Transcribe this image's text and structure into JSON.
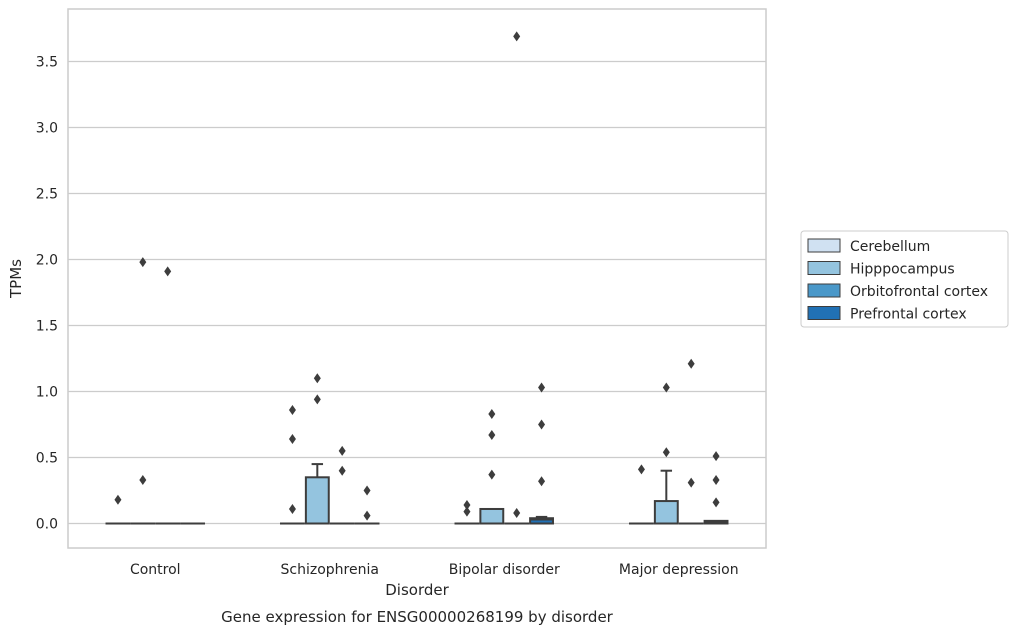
{
  "chart_data": {
    "type": "box",
    "caption": "Gene expression for ENSG00000268199 by disorder",
    "xlabel": "Disorder",
    "ylabel": "TPMs",
    "ylim": [
      -0.18,
      3.88
    ],
    "yticks": [
      0.0,
      0.5,
      1.0,
      1.5,
      2.0,
      2.5,
      3.0,
      3.5
    ],
    "ytick_labels": [
      "0.0",
      "0.5",
      "1.0",
      "1.5",
      "2.0",
      "2.5",
      "3.0",
      "3.5"
    ],
    "grid": "horizontal",
    "legend_position": "right",
    "categories": [
      "Control",
      "Schizophrenia",
      "Bipolar disorder",
      "Major depression"
    ],
    "series": [
      {
        "name": "Cerebellum",
        "color": "#d0e1f2"
      },
      {
        "name": "Hipppocampus",
        "color": "#94c4df"
      },
      {
        "name": "Orbitofrontal cortex",
        "color": "#4a98c9"
      },
      {
        "name": "Prefrontal cortex",
        "color": "#2171b5"
      }
    ],
    "boxes": [
      {
        "category": "Control",
        "series": "Cerebellum",
        "q1": 0,
        "median": 0,
        "q3": 0,
        "whisker_low": 0,
        "whisker_high": 0,
        "outliers": [
          0.18
        ]
      },
      {
        "category": "Control",
        "series": "Hipppocampus",
        "q1": 0,
        "median": 0,
        "q3": 0,
        "whisker_low": 0,
        "whisker_high": 0,
        "outliers": [
          1.98,
          0.33
        ]
      },
      {
        "category": "Control",
        "series": "Orbitofrontal cortex",
        "q1": 0,
        "median": 0,
        "q3": 0,
        "whisker_low": 0,
        "whisker_high": 0,
        "outliers": [
          1.91
        ]
      },
      {
        "category": "Control",
        "series": "Prefrontal cortex",
        "q1": 0,
        "median": 0,
        "q3": 0,
        "whisker_low": 0,
        "whisker_high": 0,
        "outliers": []
      },
      {
        "category": "Schizophrenia",
        "series": "Cerebellum",
        "q1": 0,
        "median": 0,
        "q3": 0,
        "whisker_low": 0,
        "whisker_high": 0,
        "outliers": [
          0.86,
          0.64,
          0.11
        ]
      },
      {
        "category": "Schizophrenia",
        "series": "Hipppocampus",
        "q1": 0,
        "median": 0,
        "q3": 0.35,
        "whisker_low": 0,
        "whisker_high": 0.45,
        "outliers": [
          1.1,
          0.94
        ]
      },
      {
        "category": "Schizophrenia",
        "series": "Orbitofrontal cortex",
        "q1": 0,
        "median": 0,
        "q3": 0,
        "whisker_low": 0,
        "whisker_high": 0,
        "outliers": [
          0.55,
          0.4
        ]
      },
      {
        "category": "Schizophrenia",
        "series": "Prefrontal cortex",
        "q1": 0,
        "median": 0,
        "q3": 0,
        "whisker_low": 0,
        "whisker_high": 0,
        "outliers": [
          0.25,
          0.06
        ]
      },
      {
        "category": "Bipolar disorder",
        "series": "Cerebellum",
        "q1": 0,
        "median": 0,
        "q3": 0,
        "whisker_low": 0,
        "whisker_high": 0,
        "outliers": [
          0.14,
          0.09
        ]
      },
      {
        "category": "Bipolar disorder",
        "series": "Hipppocampus",
        "q1": 0,
        "median": 0.11,
        "q3": 0.11,
        "whisker_low": 0,
        "whisker_high": 0.11,
        "outliers": [
          0.83,
          0.67,
          0.37
        ]
      },
      {
        "category": "Bipolar disorder",
        "series": "Orbitofrontal cortex",
        "q1": 0,
        "median": 0,
        "q3": 0,
        "whisker_low": 0,
        "whisker_high": 0,
        "outliers": [
          3.69,
          0.08
        ]
      },
      {
        "category": "Bipolar disorder",
        "series": "Prefrontal cortex",
        "q1": 0,
        "median": 0.03,
        "q3": 0.04,
        "whisker_low": 0,
        "whisker_high": 0.05,
        "outliers": [
          1.03,
          0.75,
          0.32
        ]
      },
      {
        "category": "Major depression",
        "series": "Cerebellum",
        "q1": 0,
        "median": 0,
        "q3": 0,
        "whisker_low": 0,
        "whisker_high": 0,
        "outliers": [
          0.41
        ]
      },
      {
        "category": "Major depression",
        "series": "Hipppocampus",
        "q1": 0,
        "median": 0,
        "q3": 0.17,
        "whisker_low": 0,
        "whisker_high": 0.4,
        "outliers": [
          1.03,
          0.54
        ]
      },
      {
        "category": "Major depression",
        "series": "Orbitofrontal cortex",
        "q1": 0,
        "median": 0,
        "q3": 0,
        "whisker_low": 0,
        "whisker_high": 0,
        "outliers": [
          1.21,
          0.31
        ]
      },
      {
        "category": "Major depression",
        "series": "Prefrontal cortex",
        "q1": 0,
        "median": 0.01,
        "q3": 0.02,
        "whisker_low": 0,
        "whisker_high": 0.02,
        "outliers": [
          0.51,
          0.33,
          0.16
        ]
      }
    ]
  }
}
